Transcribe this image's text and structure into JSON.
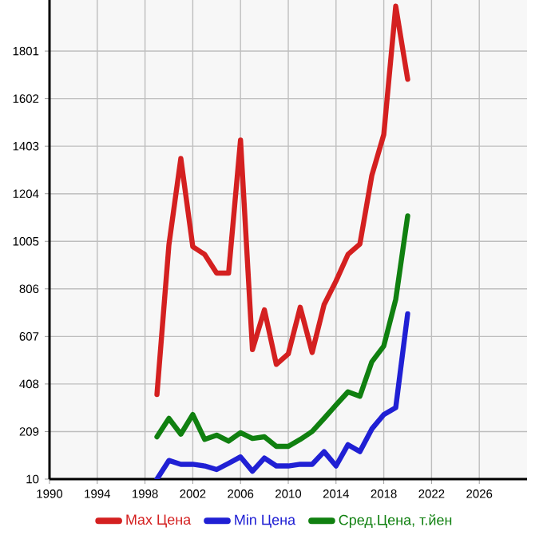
{
  "chart_data": {
    "type": "line",
    "x": [
      1999,
      2000,
      2001,
      2002,
      2003,
      2004,
      2005,
      2006,
      2007,
      2008,
      2009,
      2010,
      2011,
      2012,
      2013,
      2014,
      2015,
      2016,
      2017,
      2018,
      2019,
      2020
    ],
    "series": [
      {
        "name": "Max Цена",
        "color": "#d42020",
        "values": [
          364,
          990,
          1352,
          983,
          950,
          872,
          872,
          1429,
          552,
          718,
          490,
          534,
          729,
          540,
          740,
          839,
          950,
          994,
          1281,
          1452,
          1989,
          1683
        ]
      },
      {
        "name": "Min Цена",
        "color": "#2020d4",
        "values": [
          10,
          88,
          72,
          72,
          65,
          50,
          76,
          103,
          43,
          98,
          65,
          65,
          72,
          72,
          125,
          65,
          154,
          125,
          220,
          280,
          309,
          702
        ]
      },
      {
        "name": "Сред.Цена, т.йен",
        "color": "#108010",
        "values": [
          187,
          264,
          198,
          280,
          176,
          194,
          169,
          204,
          180,
          187,
          147,
          147,
          176,
          209,
          264,
          320,
          375,
          357,
          501,
          567,
          762,
          1111
        ]
      }
    ],
    "xlim": [
      1990,
      2030
    ],
    "ylim": [
      10,
      2015
    ],
    "xticks": [
      1990,
      1994,
      1998,
      2002,
      2006,
      2010,
      2014,
      2018,
      2022,
      2026
    ],
    "yticks": [
      10,
      209,
      408,
      607,
      806,
      1005,
      1204,
      1403,
      1602,
      1801
    ],
    "grid": true,
    "legend": "bottom",
    "marker": "none",
    "line_style": "solid"
  }
}
